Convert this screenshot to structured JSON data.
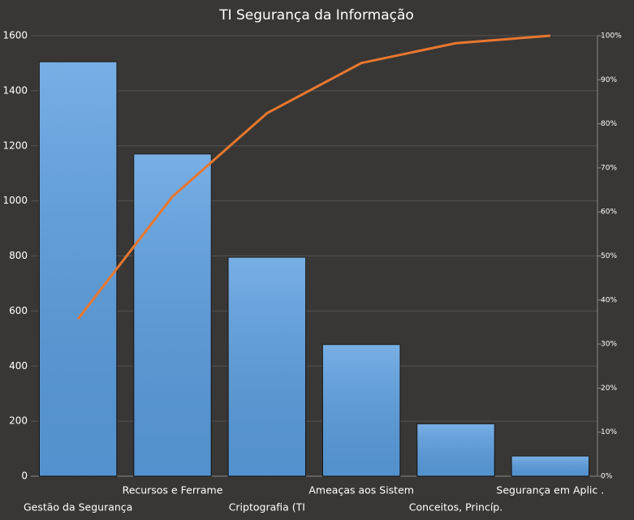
{
  "chart_data": {
    "type": "pareto",
    "title": "TI Segurança da Informação",
    "categories": [
      "Gestão da Segurança",
      "Recursos e Ferrame",
      "Criptografia (TI",
      "Ameaças aos Sistem",
      "Conceitos, Princíp.",
      "Segurança em Aplic ."
    ],
    "series": [
      {
        "type": "bar",
        "color": "#5a9ee0",
        "values": [
          1505,
          1170,
          795,
          478,
          190,
          73
        ]
      },
      {
        "type": "line",
        "axis": "y2",
        "color": "#e8772e",
        "values": [
          35.7,
          63.5,
          82.4,
          93.8,
          98.3,
          100
        ]
      }
    ],
    "ylim": [
      0,
      1600
    ],
    "yticks": [
      0,
      200,
      400,
      600,
      800,
      1000,
      1200,
      1400,
      1600
    ],
    "y2lim": [
      0,
      100
    ],
    "y2ticks": [
      {
        "value": 0,
        "label": "0%"
      },
      {
        "value": 10,
        "label": "10%"
      },
      {
        "value": 20,
        "label": "20%"
      },
      {
        "value": 30,
        "label": "30%"
      },
      {
        "value": 40,
        "label": "40%"
      },
      {
        "value": 50,
        "label": "50%"
      },
      {
        "value": 60,
        "label": "60%"
      },
      {
        "value": 70,
        "label": "70%"
      },
      {
        "value": 80,
        "label": "80%"
      },
      {
        "value": 90,
        "label": "90%"
      },
      {
        "value": 100,
        "label": "100%"
      }
    ],
    "grid": true
  }
}
